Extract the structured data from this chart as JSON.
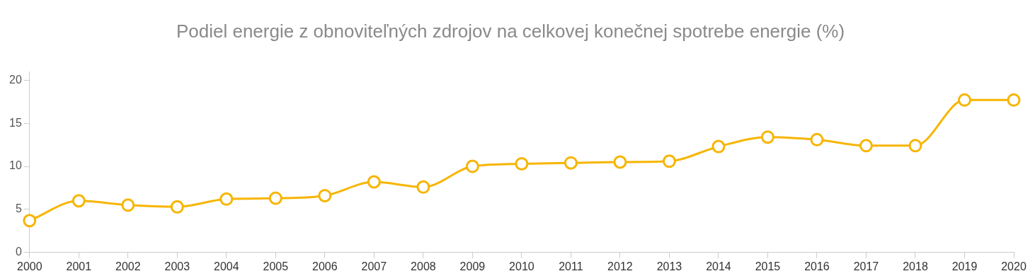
{
  "chart_data": {
    "type": "line",
    "title": "Podiel energie z obnoviteľných zdrojov na celkovej konečnej spotrebe energie (%)",
    "categories": [
      "2000",
      "2001",
      "2002",
      "2003",
      "2004",
      "2005",
      "2006",
      "2007",
      "2008",
      "2009",
      "2010",
      "2011",
      "2012",
      "2013",
      "2014",
      "2015",
      "2016",
      "2017",
      "2018",
      "2019",
      "2020"
    ],
    "series": [
      {
        "color": "#f7b500",
        "values": [
          3.7,
          6.0,
          5.5,
          5.3,
          6.2,
          6.3,
          6.6,
          8.2,
          7.6,
          10.0,
          10.3,
          10.4,
          10.5,
          10.6,
          12.3,
          13.4,
          13.1,
          12.4,
          12.4,
          17.7,
          17.7
        ]
      }
    ],
    "ylim": [
      0,
      21
    ],
    "yticks": [
      0,
      5,
      10,
      15,
      20
    ],
    "grid": false,
    "legend": false,
    "marker": "circle",
    "line_style": "solid"
  }
}
